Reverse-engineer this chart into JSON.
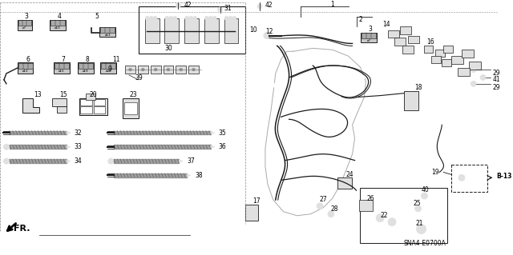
{
  "bg_color": "#ffffff",
  "diagram_code": "SNA4-E0700A",
  "fr_label": "FR.",
  "b13_label": "B-13",
  "line_color": "#1a1a1a",
  "gray_fill": "#c8c8c8",
  "dark_gray": "#666666",
  "mid_gray": "#999999",
  "light_gray": "#e0e0e0",
  "white": "#ffffff"
}
